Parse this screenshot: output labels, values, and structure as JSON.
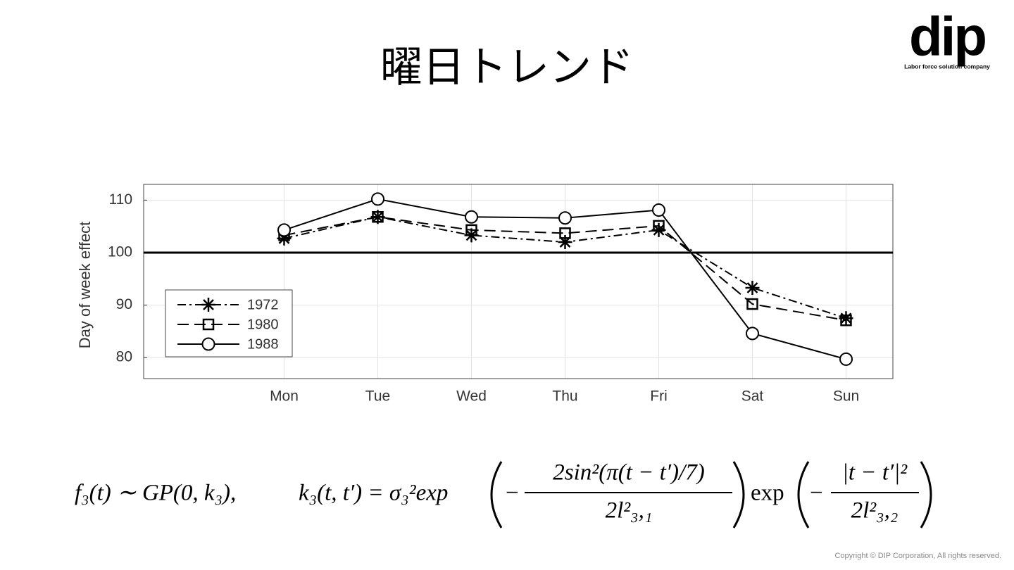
{
  "title": "曜日トレンド",
  "logo": {
    "name": "dip",
    "tagline": "Labor force solution company"
  },
  "copyright": "Copyright © DIP Corporation, All rights reserved.",
  "formula": {
    "lhs": "f₃(t) ∼ GP(0, k₃),",
    "kernel": "k₃(t, t′) = σ₃²exp",
    "minus1": "−",
    "num1": "2sin²(π(t − t′)/7)",
    "den1": "2l²₃,₁",
    "exp2": "exp",
    "minus2": "−",
    "num2": "|t − t′|²",
    "den2": "2l²₃,₂"
  },
  "chart_data": {
    "type": "line",
    "y_label": "Day of week effect",
    "categories": [
      null,
      "Mon",
      "Tue",
      "Wed",
      "Thu",
      "Fri",
      "Sat",
      "Sun"
    ],
    "series": [
      {
        "name": "1972",
        "color": "#000000",
        "line_style": "dashdot",
        "marker": "star",
        "values": [
          null,
          102.7,
          106.8,
          103.3,
          102.0,
          104.3,
          93.3,
          87.5
        ]
      },
      {
        "name": "1980",
        "color": "#000000",
        "line_style": "dashed",
        "marker": "square",
        "values": [
          null,
          103.3,
          106.8,
          104.3,
          103.7,
          105.1,
          90.2,
          87.1
        ]
      },
      {
        "name": "1988",
        "color": "#000000",
        "line_style": "solid",
        "marker": "circle",
        "values": [
          null,
          104.3,
          110.2,
          106.8,
          106.6,
          108.1,
          84.6,
          79.7
        ]
      }
    ],
    "ylim": [
      76,
      113
    ],
    "yticks": [
      80,
      90,
      100,
      110
    ],
    "grid": true,
    "reference_line": 100,
    "legend": "lower-left"
  }
}
